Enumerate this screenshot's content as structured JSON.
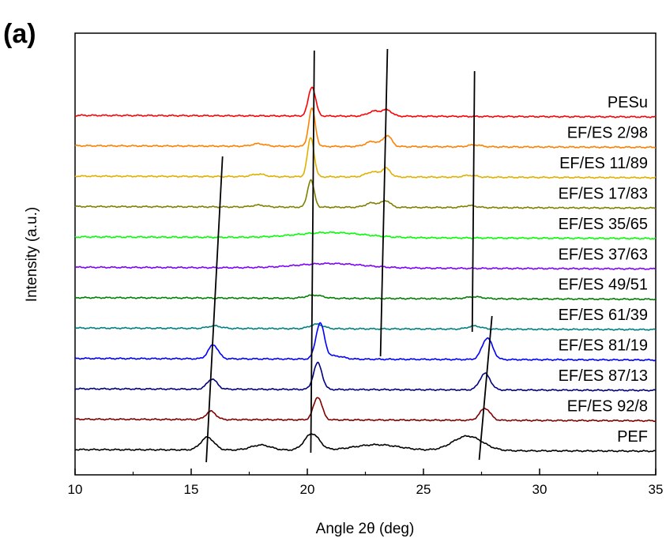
{
  "panel_label": "(a)",
  "chart_data": {
    "type": "line",
    "title": "",
    "xlabel": "Angle 2θ (deg)",
    "ylabel": "Intensity (a.u.)",
    "xlim": [
      10,
      35
    ],
    "x_ticks": [
      10,
      15,
      20,
      25,
      30,
      35
    ],
    "y_ticks_shown": false,
    "grid": false,
    "legend": "labels placed at right end of each stacked curve",
    "series": [
      {
        "name": "PESu",
        "color": "#ff0000",
        "peaks": [
          {
            "x": 20.2,
            "h": 4.6,
            "w": 0.22
          },
          {
            "x": 22.9,
            "h": 0.8,
            "w": 0.4
          },
          {
            "x": 23.45,
            "h": 0.9,
            "w": 0.28
          }
        ]
      },
      {
        "name": "EF/ES 2/98",
        "color": "#ff8000",
        "peaks": [
          {
            "x": 17.9,
            "h": 0.4,
            "w": 0.4
          },
          {
            "x": 20.2,
            "h": 6.0,
            "w": 0.2
          },
          {
            "x": 22.8,
            "h": 0.8,
            "w": 0.4
          },
          {
            "x": 23.45,
            "h": 1.7,
            "w": 0.26
          },
          {
            "x": 27.2,
            "h": 0.3,
            "w": 0.4
          }
        ]
      },
      {
        "name": "EF/ES 11/89",
        "color": "#e0b000",
        "peaks": [
          {
            "x": 17.9,
            "h": 0.4,
            "w": 0.4
          },
          {
            "x": 20.15,
            "h": 6.2,
            "w": 0.2
          },
          {
            "x": 22.8,
            "h": 0.8,
            "w": 0.4
          },
          {
            "x": 23.4,
            "h": 1.3,
            "w": 0.26
          },
          {
            "x": 27.0,
            "h": 0.3,
            "w": 0.4
          }
        ]
      },
      {
        "name": "EF/ES 17/83",
        "color": "#808000",
        "peaks": [
          {
            "x": 17.9,
            "h": 0.3,
            "w": 0.4
          },
          {
            "x": 20.15,
            "h": 4.3,
            "w": 0.2
          },
          {
            "x": 22.8,
            "h": 0.7,
            "w": 0.4
          },
          {
            "x": 23.4,
            "h": 1.0,
            "w": 0.26
          },
          {
            "x": 27.0,
            "h": 0.3,
            "w": 0.4
          }
        ]
      },
      {
        "name": "EF/ES 35/65",
        "color": "#00ff00",
        "peaks": [
          {
            "x": 21.0,
            "h": 0.8,
            "w": 2.0
          }
        ]
      },
      {
        "name": "EF/ES 37/63",
        "color": "#8000ff",
        "peaks": [
          {
            "x": 21.0,
            "h": 0.7,
            "w": 2.0
          }
        ]
      },
      {
        "name": "EF/ES 49/51",
        "color": "#008000",
        "peaks": [
          {
            "x": 20.3,
            "h": 0.5,
            "w": 0.5
          },
          {
            "x": 27.2,
            "h": 0.3,
            "w": 0.5
          }
        ]
      },
      {
        "name": "EF/ES 61/39",
        "color": "#008080",
        "peaks": [
          {
            "x": 16.0,
            "h": 0.4,
            "w": 0.4
          },
          {
            "x": 20.4,
            "h": 0.7,
            "w": 0.4
          },
          {
            "x": 27.2,
            "h": 0.5,
            "w": 0.4
          }
        ]
      },
      {
        "name": "EF/ES 81/19",
        "color": "#0000ff",
        "peaks": [
          {
            "x": 15.95,
            "h": 2.2,
            "w": 0.3
          },
          {
            "x": 20.55,
            "h": 5.6,
            "w": 0.26
          },
          {
            "x": 21.2,
            "h": 0.5,
            "w": 0.5
          },
          {
            "x": 27.75,
            "h": 3.4,
            "w": 0.32
          }
        ]
      },
      {
        "name": "EF/ES 87/13",
        "color": "#000080",
        "peaks": [
          {
            "x": 15.9,
            "h": 1.6,
            "w": 0.3
          },
          {
            "x": 20.45,
            "h": 4.2,
            "w": 0.26
          },
          {
            "x": 27.65,
            "h": 2.6,
            "w": 0.32
          }
        ]
      },
      {
        "name": "EF/ES 92/8",
        "color": "#800000",
        "peaks": [
          {
            "x": 15.85,
            "h": 1.3,
            "w": 0.3
          },
          {
            "x": 20.45,
            "h": 3.6,
            "w": 0.26
          },
          {
            "x": 27.65,
            "h": 1.9,
            "w": 0.32
          }
        ]
      },
      {
        "name": "PEF",
        "color": "#000000",
        "peaks": [
          {
            "x": 15.7,
            "h": 2.0,
            "w": 0.4
          },
          {
            "x": 18.0,
            "h": 0.8,
            "w": 0.6
          },
          {
            "x": 20.2,
            "h": 2.6,
            "w": 0.45
          },
          {
            "x": 23.0,
            "h": 0.9,
            "w": 1.4
          },
          {
            "x": 26.9,
            "h": 2.3,
            "w": 0.9
          }
        ]
      }
    ],
    "guide_lines": [
      {
        "x_start": 15.65,
        "x_end": 16.35
      },
      {
        "x_start": 20.15,
        "x_end": 20.3
      },
      {
        "x_start": 23.15,
        "x_end": 23.45
      },
      {
        "x_start": 27.4,
        "x_end": 27.95
      },
      {
        "x_start": 27.1,
        "x_end": 27.2
      }
    ]
  }
}
